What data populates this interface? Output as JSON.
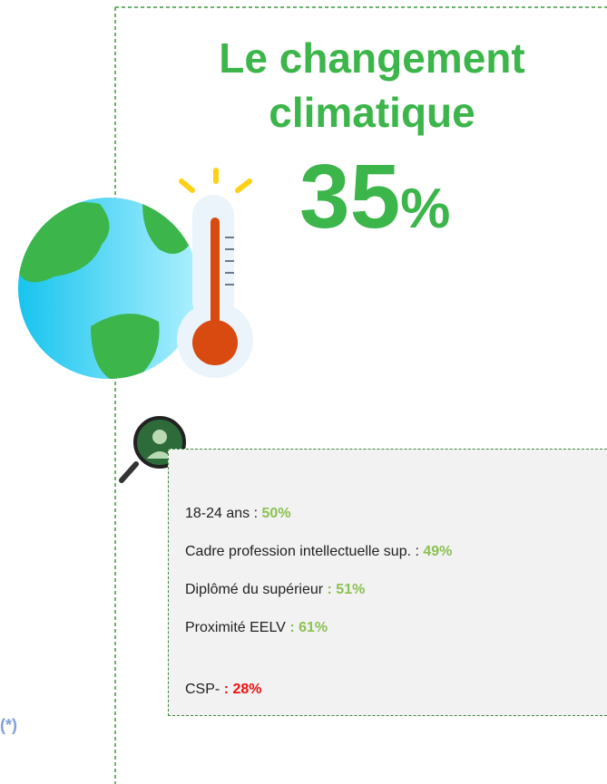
{
  "title": "Le changement climatique",
  "headline": {
    "number": "35",
    "unit": "%"
  },
  "side_note": "(*)",
  "rows": [
    {
      "label": "18-24 ans  :",
      "value": "50%"
    },
    {
      "label": "Cadre profession intellectuelle sup. :",
      "value": "49%"
    },
    {
      "label": "Diplômé du supérieur",
      "value": ": 51%"
    },
    {
      "label": "Proximité EELV",
      "value": ": 61%"
    },
    {
      "label": "CSP-",
      "value": ": 28%"
    }
  ]
}
